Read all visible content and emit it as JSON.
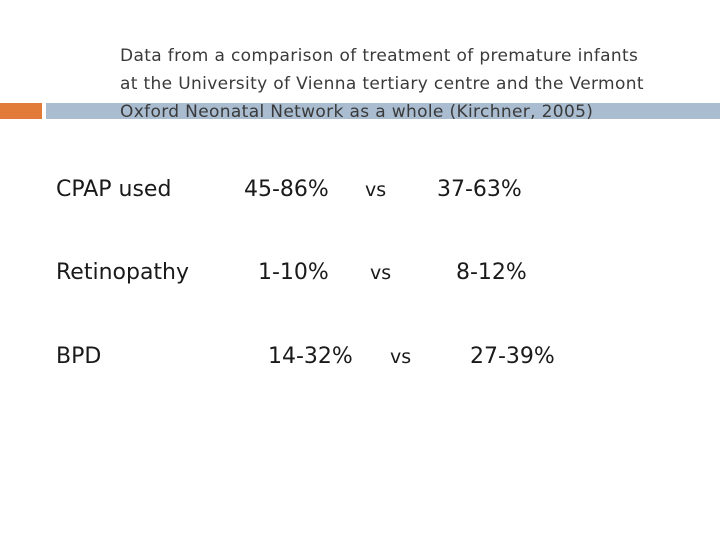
{
  "header": {
    "lines": [
      "Data from a comparison of treatment of premature infants",
      "at the University of  Vienna tertiary centre and the Vermont",
      "Oxford Neonatal Network as a whole (Kirchner, 2005)"
    ]
  },
  "rows": [
    {
      "label": "CPAP used",
      "value_a": "45-86%",
      "vs": "vs",
      "value_b": "37-63%"
    },
    {
      "label": "Retinopathy",
      "value_a": "1-10%",
      "vs": "vs",
      "value_b": "8-12%"
    },
    {
      "label": "BPD",
      "value_a": "14-32%",
      "vs": "vs",
      "value_b": "27-39%"
    }
  ],
  "colors": {
    "accent_orange": "#e27b3a",
    "accent_blue": "#a9bcd0",
    "text": "#1a1a1a"
  }
}
